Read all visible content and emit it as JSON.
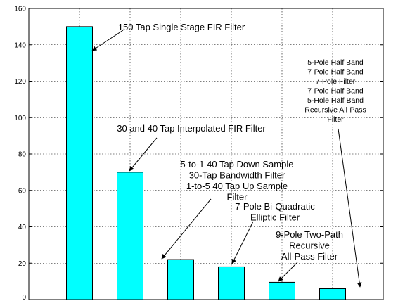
{
  "chart_data": {
    "type": "bar",
    "title": "",
    "xlabel": "",
    "ylabel": "",
    "categories": [
      "",
      "",
      "",
      "",
      "",
      ""
    ],
    "values": [
      150,
      70,
      22,
      18,
      9.5,
      6
    ],
    "ylim": [
      0,
      160
    ],
    "yticks": [
      "0",
      "20",
      "40",
      "60",
      "80",
      "100",
      "120",
      "140",
      "160"
    ],
    "grid": true,
    "bar_color": "#00FFFF",
    "annotations": [
      {
        "bar": 0,
        "lines": [
          "150 Tap Single Stage FIR Filter"
        ]
      },
      {
        "bar": 1,
        "lines": [
          "30 and 40 Tap Interpolated FIR Filter"
        ]
      },
      {
        "bar": 2,
        "lines": [
          "5-to-1 40 Tap Down Sample",
          "30-Tap Bandwidth Filter",
          "1-to-5 40 Tap Up Sample",
          "Filter"
        ]
      },
      {
        "bar": 3,
        "lines": [
          "7-Pole Bi-Quadratic",
          "Elliptic Filter"
        ]
      },
      {
        "bar": 4,
        "lines": [
          "9-Pole Two-Path",
          "Recursive",
          "All-Pass Filter"
        ]
      },
      {
        "bar": 5,
        "lines": [
          "5-Pole Half Band",
          "7-Pole Half Band",
          "7-Pole Filter",
          "7-Pole Half Band",
          "5-Hole Half Band",
          "Recursive All-Pass",
          "Filter"
        ]
      }
    ]
  }
}
